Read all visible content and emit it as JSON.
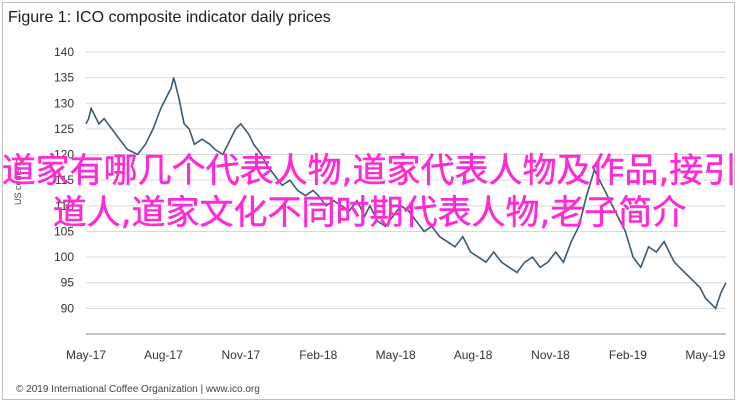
{
  "title": "Figure 1: ICO composite indicator daily prices",
  "footer": "© 2019 International Coffee Organization | www.ico.org",
  "overlay_text": "道家有哪几个代表人物,道家代表人物及作品,接引道人,道家文化不同时期代表人物,老子简介",
  "colors": {
    "line": "#3d5a6e",
    "grid": "#d9d9d9",
    "overlay": "#ff2ad4"
  },
  "chart_data": {
    "type": "line",
    "title": "Figure 1: ICO composite indicator daily prices",
    "ylabel": "US cents/lb",
    "xlabel": "",
    "ylim": [
      85,
      140
    ],
    "yticks": [
      90,
      95,
      100,
      105,
      110,
      115,
      120,
      125,
      130,
      135,
      140
    ],
    "xticks": [
      "May-17",
      "Aug-17",
      "Nov-17",
      "Feb-18",
      "May-18",
      "Aug-18",
      "Nov-18",
      "Feb-19",
      "May-19"
    ],
    "grid": true,
    "series": [
      {
        "name": "",
        "x_month_index": [
          0,
          0.1,
          0.2,
          0.3,
          0.5,
          0.7,
          1.0,
          1.3,
          1.6,
          2.0,
          2.3,
          2.6,
          2.9,
          3.1,
          3.3,
          3.4,
          3.6,
          3.8,
          4.0,
          4.2,
          4.5,
          4.8,
          5.0,
          5.3,
          5.6,
          5.8,
          6.0,
          6.3,
          6.5,
          6.8,
          7.0,
          7.3,
          7.6,
          7.9,
          8.2,
          8.5,
          8.8,
          9.0,
          9.3,
          9.6,
          9.9,
          10.2,
          10.5,
          10.8,
          11.0,
          11.3,
          11.6,
          11.9,
          12.2,
          12.5,
          12.8,
          13.1,
          13.4,
          13.7,
          14.0,
          14.3,
          14.6,
          14.9,
          15.2,
          15.5,
          15.8,
          16.1,
          16.4,
          16.7,
          17.0,
          17.3,
          17.6,
          17.9,
          18.2,
          18.5,
          18.8,
          19.1,
          19.4,
          19.7,
          20.0,
          20.3,
          20.6,
          20.9,
          21.2,
          21.5,
          21.8,
          22.1,
          22.4,
          22.6,
          22.8,
          23.0,
          23.2,
          23.4,
          23.6,
          23.8,
          24.0,
          24.2,
          24.4,
          24.6,
          24.8
        ],
        "values": [
          126,
          127,
          129,
          128,
          126,
          127,
          125,
          123,
          121,
          120,
          122,
          125,
          129,
          131,
          133,
          135,
          131,
          126,
          125,
          122,
          123,
          122,
          121,
          120,
          123,
          125,
          126,
          124,
          122,
          120,
          118,
          116,
          114,
          115,
          113,
          112,
          113,
          112,
          110,
          111,
          110,
          109,
          111,
          108,
          110,
          107,
          106,
          108,
          110,
          109,
          107,
          105,
          106,
          104,
          103,
          102,
          104,
          101,
          100,
          99,
          101,
          99,
          98,
          97,
          99,
          100,
          98,
          99,
          101,
          99,
          103,
          106,
          112,
          117,
          114,
          111,
          108,
          105,
          100,
          98,
          102,
          101,
          103,
          101,
          99,
          98,
          97,
          96,
          95,
          94,
          92,
          91,
          90,
          93,
          95
        ]
      }
    ]
  }
}
